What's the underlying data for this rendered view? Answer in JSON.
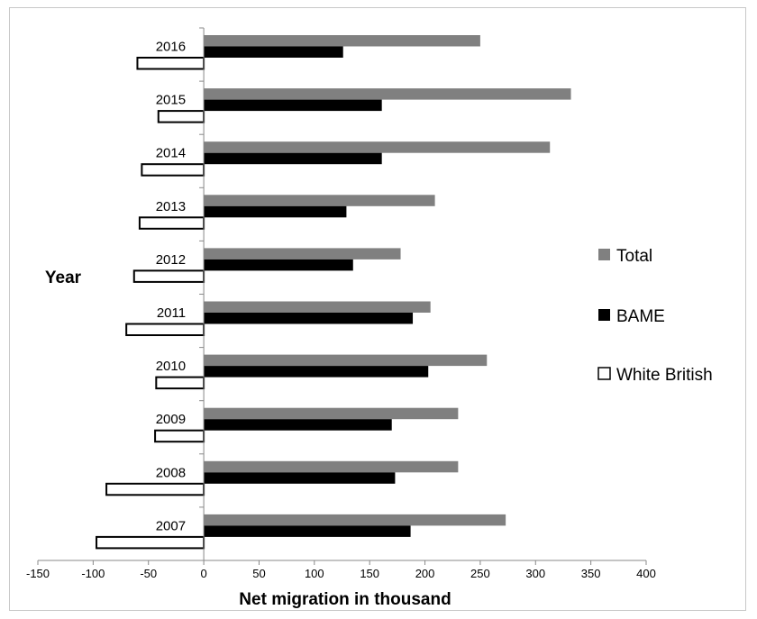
{
  "chart_data": {
    "type": "bar",
    "orientation": "horizontal",
    "title": "",
    "xlabel": "Net migration in thousand",
    "ylabel": "Year",
    "xlim": [
      -150,
      400
    ],
    "xticks": [
      -150,
      -100,
      -50,
      0,
      50,
      100,
      150,
      200,
      250,
      300,
      350,
      400
    ],
    "categories": [
      "2007",
      "2008",
      "2009",
      "2010",
      "2011",
      "2012",
      "2013",
      "2014",
      "2015",
      "2016"
    ],
    "series": [
      {
        "name": "Total",
        "color": "#808080",
        "values": [
          273,
          230,
          230,
          256,
          205,
          178,
          209,
          313,
          332,
          250
        ]
      },
      {
        "name": "BAME",
        "color": "#000000",
        "values": [
          187,
          173,
          170,
          203,
          189,
          135,
          129,
          161,
          161,
          126
        ]
      },
      {
        "name": "White British",
        "color": "#ffffff",
        "values": [
          -97,
          -88,
          -44,
          -43,
          -70,
          -63,
          -58,
          -56,
          -41,
          -60
        ]
      }
    ],
    "grid": false,
    "legend": "right"
  }
}
